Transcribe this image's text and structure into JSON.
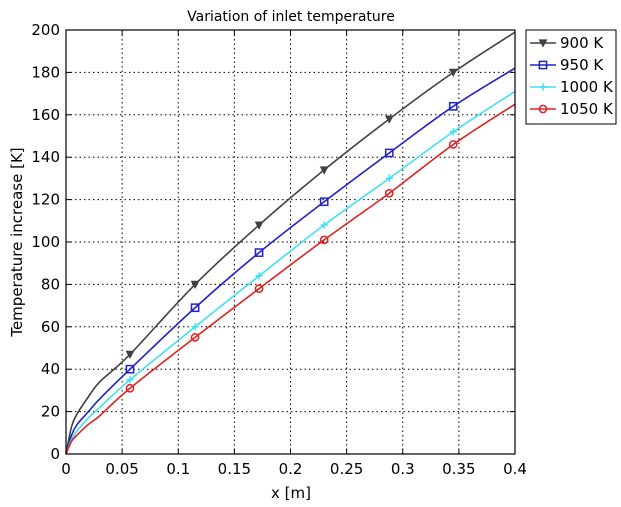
{
  "chart_data": {
    "type": "line",
    "title": "Variation of inlet temperature",
    "xlabel": "x [m]",
    "ylabel": "Temperature increase [K]",
    "xlim": [
      0,
      0.4
    ],
    "ylim": [
      0,
      200
    ],
    "xticks": [
      0,
      0.05,
      0.1,
      0.15,
      0.2,
      0.25,
      0.3,
      0.35,
      0.4
    ],
    "xtick_labels": [
      "0",
      "0.05",
      "0.1",
      "0.15",
      "0.2",
      "0.25",
      "0.3",
      "0.35",
      "0.4"
    ],
    "yticks": [
      0,
      20,
      40,
      60,
      80,
      100,
      120,
      140,
      160,
      180,
      200
    ],
    "ytick_labels": [
      "0",
      "20",
      "40",
      "60",
      "80",
      "100",
      "120",
      "140",
      "160",
      "180",
      "200"
    ],
    "grid": true,
    "legend_position": "outside-top-right",
    "series": [
      {
        "name": "900 K",
        "color": "#404040",
        "marker": "triangle-down",
        "x": [
          0,
          0.005,
          0.01,
          0.02,
          0.03,
          0.057,
          0.115,
          0.172,
          0.23,
          0.288,
          0.345,
          0.4
        ],
        "y": [
          0,
          13,
          19,
          27,
          34,
          47,
          80,
          108,
          134,
          158,
          180,
          199
        ],
        "marker_x": [
          0.057,
          0.115,
          0.172,
          0.23,
          0.288,
          0.345
        ],
        "marker_y": [
          47,
          80,
          108,
          134,
          158,
          180
        ]
      },
      {
        "name": "950 K",
        "color": "#1f23c8",
        "marker": "square",
        "x": [
          0,
          0.005,
          0.01,
          0.02,
          0.03,
          0.057,
          0.115,
          0.172,
          0.23,
          0.288,
          0.345,
          0.4
        ],
        "y": [
          0,
          9,
          14,
          20,
          26,
          40,
          69,
          95,
          119,
          142,
          164,
          182
        ],
        "marker_x": [
          0.057,
          0.115,
          0.172,
          0.23,
          0.288,
          0.345
        ],
        "marker_y": [
          40,
          69,
          95,
          119,
          142,
          164
        ]
      },
      {
        "name": "1000 K",
        "color": "#40e0f0",
        "marker": "plus",
        "x": [
          0,
          0.005,
          0.01,
          0.02,
          0.03,
          0.057,
          0.115,
          0.172,
          0.23,
          0.288,
          0.345,
          0.4
        ],
        "y": [
          0,
          7,
          11,
          17,
          22,
          35,
          60,
          84,
          108,
          130,
          152,
          171
        ],
        "marker_x": [
          0.057,
          0.115,
          0.172,
          0.23,
          0.288,
          0.345
        ],
        "marker_y": [
          35,
          60,
          84,
          108,
          130,
          152
        ]
      },
      {
        "name": "1050 K",
        "color": "#e02020",
        "marker": "circle",
        "x": [
          0,
          0.005,
          0.01,
          0.02,
          0.03,
          0.057,
          0.115,
          0.172,
          0.23,
          0.288,
          0.345,
          0.4
        ],
        "y": [
          0,
          6,
          9,
          14,
          18,
          31,
          55,
          78,
          101,
          123,
          146,
          165
        ],
        "marker_x": [
          0.057,
          0.115,
          0.172,
          0.23,
          0.288,
          0.345
        ],
        "marker_y": [
          31,
          55,
          78,
          101,
          123,
          146
        ]
      }
    ]
  }
}
